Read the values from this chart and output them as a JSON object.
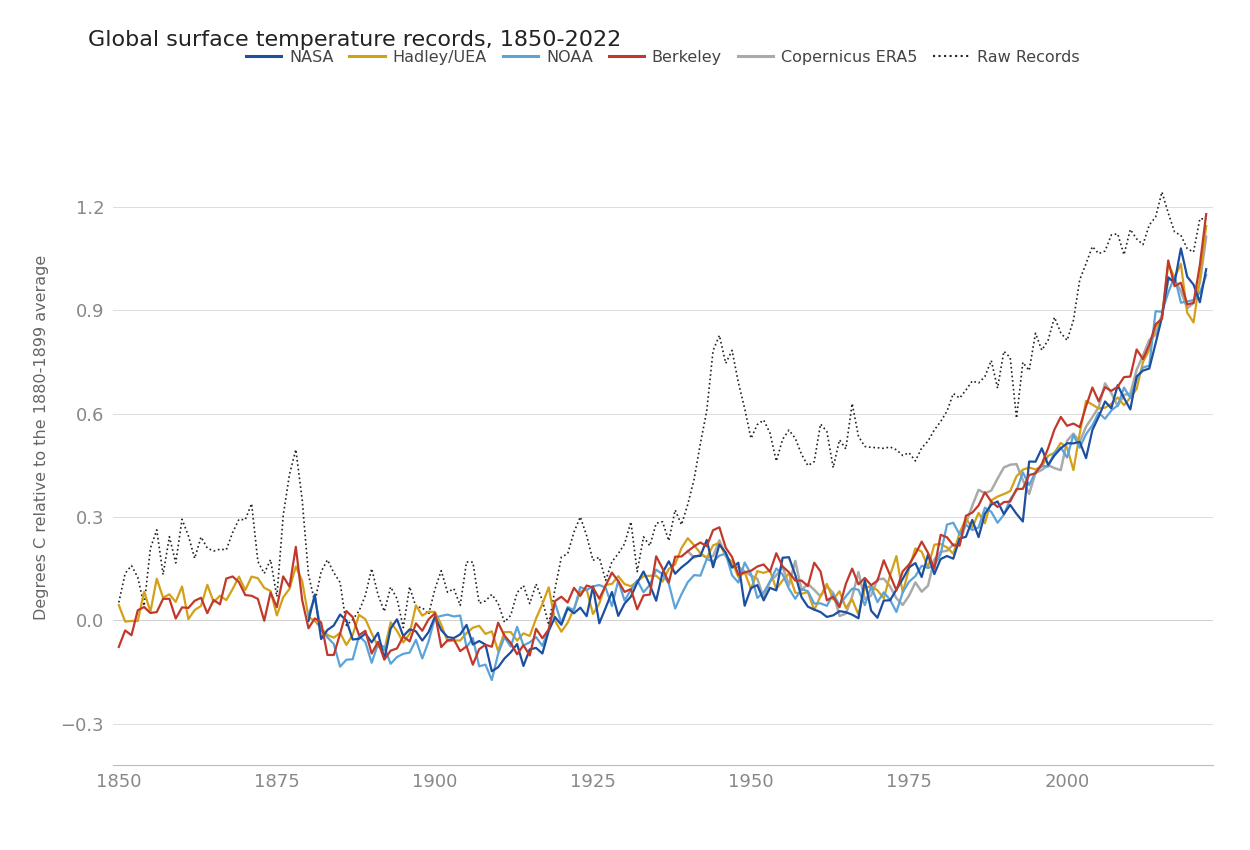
{
  "title": "Global surface temperature records, 1850-2022",
  "ylabel": "Degrees C relative to the 1880-1899 average",
  "xlim": [
    1850,
    2022
  ],
  "ylim": [
    -0.42,
    1.48
  ],
  "yticks": [
    -0.3,
    0.0,
    0.3,
    0.6,
    0.9,
    1.2
  ],
  "xticks": [
    1850,
    1875,
    1900,
    1925,
    1950,
    1975,
    2000
  ],
  "colors": {
    "NASA": "#1c4fa0",
    "HadleyUEA": "#d4a017",
    "NOAA": "#5ba3d9",
    "Berkeley": "#c0392b",
    "CopernicusERA5": "#aaaaaa",
    "RawRecords": "#222222"
  },
  "background_color": "#ffffff",
  "grid_color": "#dddddd"
}
